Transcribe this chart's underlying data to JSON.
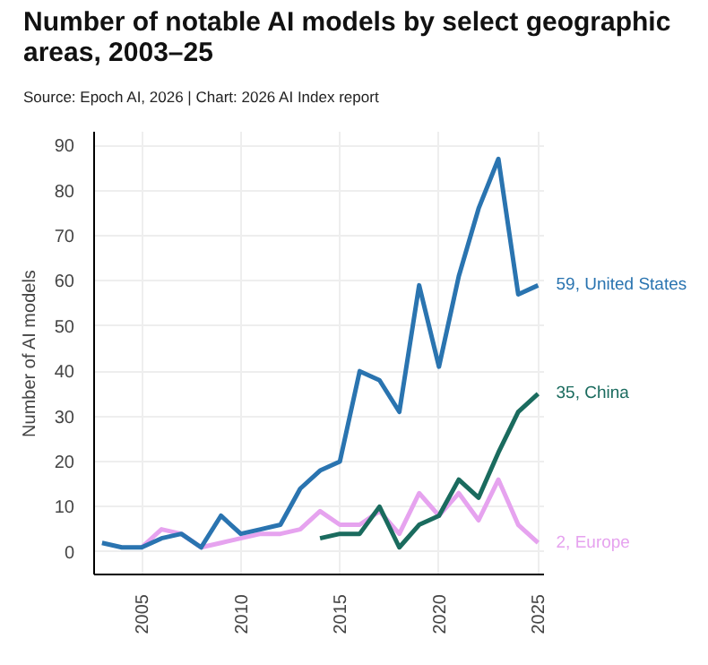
{
  "chart_data": {
    "type": "line",
    "title": "Number of notable AI models by select geographic areas, 2003–25",
    "subtitle": "Source: Epoch AI, 2026 | Chart: 2026 AI Index report",
    "ylabel": "Number of AI models",
    "x": [
      2003,
      2004,
      2005,
      2006,
      2007,
      2008,
      2009,
      2010,
      2011,
      2012,
      2013,
      2014,
      2015,
      2016,
      2017,
      2018,
      2019,
      2020,
      2021,
      2022,
      2023,
      2024,
      2025
    ],
    "series": [
      {
        "name": "Europe",
        "color": "#e6a3ef",
        "x": [
          2005,
          2006,
          2007,
          2008,
          2009,
          2010,
          2011,
          2012,
          2013,
          2014,
          2015,
          2016,
          2017,
          2018,
          2019,
          2020,
          2021,
          2022,
          2023,
          2024,
          2025
        ],
        "values": [
          1,
          5,
          4,
          1,
          2,
          3,
          4,
          4,
          5,
          9,
          6,
          6,
          9,
          4,
          13,
          8,
          13,
          7,
          16,
          6,
          2
        ],
        "value_labels": [
          null,
          null,
          null,
          null,
          null,
          null,
          null,
          null,
          null,
          null,
          null,
          null,
          null,
          null,
          null,
          null,
          null,
          null,
          null,
          null,
          "2,"
        ]
      },
      {
        "name": "China",
        "color": "#1a6b5e",
        "x": [
          2014,
          2015,
          2016,
          2017,
          2018,
          2019,
          2020,
          2021,
          2022,
          2023,
          2024,
          2025
        ],
        "values": [
          3,
          4,
          4,
          10,
          1,
          6,
          8,
          16,
          12,
          22,
          31,
          35
        ],
        "value_labels": [
          null,
          null,
          null,
          null,
          null,
          null,
          null,
          null,
          null,
          null,
          null,
          "35,"
        ]
      },
      {
        "name": "United States",
        "color": "#2a74b0",
        "values": [
          2,
          1,
          1,
          3,
          4,
          1,
          8,
          4,
          5,
          6,
          14,
          18,
          20,
          40,
          38,
          31,
          59,
          41,
          61,
          76,
          87,
          57,
          59
        ],
        "value_labels": [
          null,
          null,
          null,
          null,
          null,
          null,
          null,
          null,
          null,
          null,
          null,
          null,
          null,
          null,
          null,
          null,
          null,
          null,
          null,
          null,
          null,
          null,
          "59,"
        ]
      }
    ],
    "xlim": [
      2002.6,
      2025.3
    ],
    "xticks": [
      2005,
      2010,
      2015,
      2020,
      2025
    ],
    "ylim": [
      -5,
      93
    ],
    "yticks": [
      0,
      10,
      20,
      30,
      40,
      50,
      60,
      70,
      80,
      90
    ],
    "grid": true,
    "line_style": "solid",
    "marker": "none"
  }
}
